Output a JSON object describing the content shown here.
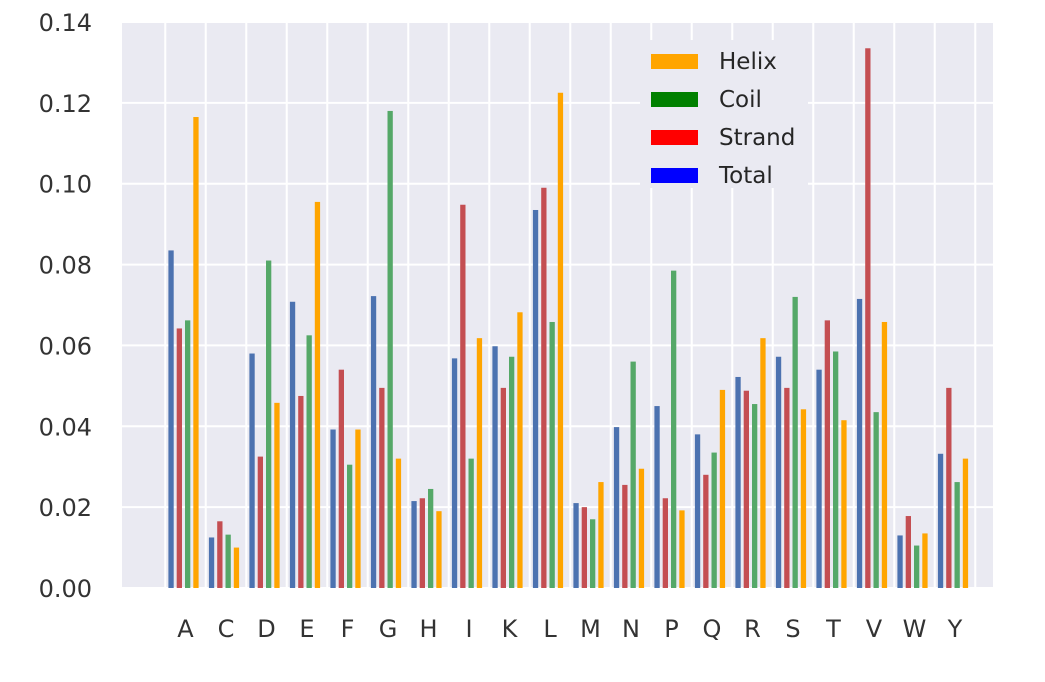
{
  "chart_data": {
    "type": "bar",
    "title": "",
    "xlabel": "",
    "ylabel": "",
    "ylim": [
      0,
      0.14
    ],
    "y_ticks": [
      0.0,
      0.02,
      0.04,
      0.06,
      0.08,
      0.1,
      0.12,
      0.14
    ],
    "y_tick_labels": [
      "0.00",
      "0.02",
      "0.04",
      "0.06",
      "0.08",
      "0.10",
      "0.12",
      "0.14"
    ],
    "categories": [
      "A",
      "C",
      "D",
      "E",
      "F",
      "G",
      "H",
      "I",
      "K",
      "L",
      "M",
      "N",
      "P",
      "Q",
      "R",
      "S",
      "T",
      "V",
      "W",
      "Y"
    ],
    "grid": true,
    "background": "#EAEAF2",
    "legend_position": "top-right",
    "series": [
      {
        "name": "Total",
        "color": "#4C72B0",
        "values": [
          0.0835,
          0.0125,
          0.058,
          0.0708,
          0.0392,
          0.0722,
          0.0215,
          0.0568,
          0.0598,
          0.0935,
          0.021,
          0.0398,
          0.045,
          0.038,
          0.0522,
          0.0572,
          0.054,
          0.0715,
          0.013,
          0.0332
        ]
      },
      {
        "name": "Strand",
        "color": "#C44E52",
        "values": [
          0.0642,
          0.0165,
          0.0325,
          0.0475,
          0.054,
          0.0495,
          0.0222,
          0.0948,
          0.0495,
          0.099,
          0.02,
          0.0255,
          0.0222,
          0.028,
          0.0488,
          0.0495,
          0.0662,
          0.1335,
          0.0178,
          0.0495
        ]
      },
      {
        "name": "Coil",
        "color": "#55A868",
        "values": [
          0.0662,
          0.0132,
          0.081,
          0.0625,
          0.0305,
          0.118,
          0.0245,
          0.032,
          0.0572,
          0.0658,
          0.017,
          0.056,
          0.0785,
          0.0335,
          0.0455,
          0.072,
          0.0585,
          0.0435,
          0.0105,
          0.0262
        ]
      },
      {
        "name": "Helix",
        "color": "#FFA500",
        "values": [
          0.1165,
          0.01,
          0.0458,
          0.0955,
          0.0392,
          0.032,
          0.019,
          0.0618,
          0.0682,
          0.1225,
          0.0262,
          0.0295,
          0.0192,
          0.049,
          0.0618,
          0.0442,
          0.0415,
          0.0658,
          0.0135,
          0.032
        ]
      }
    ],
    "legend": [
      {
        "name": "Helix",
        "color": "#FFA500"
      },
      {
        "name": "Coil",
        "color": "#008000"
      },
      {
        "name": "Strand",
        "color": "#FF0000"
      },
      {
        "name": "Total",
        "color": "#0000FF"
      }
    ]
  }
}
